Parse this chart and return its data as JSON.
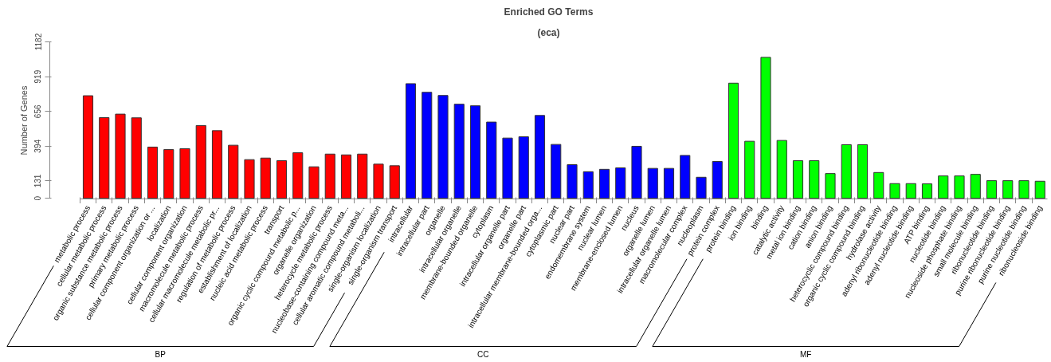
{
  "chart_data": {
    "type": "bar",
    "title": "Enriched GO Terms",
    "subtitle": "(eca)",
    "ylabel": "Number of Genes",
    "categories": [
      "metabolic process",
      "cellular metabolic process",
      "organic substance metabolic process",
      "primary metabolic process",
      "cellular component organization or ...",
      "localization",
      "cellular component organization",
      "macromolecule metabolic process",
      "cellular macromolecule metabolic pr...",
      "regulation of metabolic process",
      "establishment of localization",
      "nucleic acid metabolic process",
      "transport",
      "organic cyclic compound metabolic p...",
      "organelle organization",
      "heterocycle metabolic process",
      "nucleobase-containing compound meta...",
      "cellular aromatic compound metaboli...",
      "single-organism localization",
      "single-organism transport",
      "intracellular",
      "intracellular part",
      "organelle",
      "intracellular organelle",
      "membrane-bounded organelle",
      "cytoplasm",
      "intracellular organelle part",
      "organelle part",
      "intracellular membrane-bounded orga...",
      "cytoplasmic part",
      "nuclear part",
      "endomembrane system",
      "nuclear lumen",
      "membrane-enclosed lumen",
      "nucleus",
      "organelle lumen",
      "intracellular organelle lumen",
      "macromolecular complex",
      "nucleoplasm",
      "protein complex",
      "protein binding",
      "ion binding",
      "binding",
      "catalytic activity",
      "metal ion binding",
      "cation binding",
      "anion binding",
      "heterocyclic compound binding",
      "organic cyclic compound binding",
      "hydrolase activity",
      "adenyl ribonucleotide binding",
      "adenyl nucleotide binding",
      "ATP binding",
      "nucleotide binding",
      "nucleoside phosphate binding",
      "small molecule binding",
      "ribonucleotide binding",
      "purine ribonucleotide binding",
      "purine nucleotide binding",
      "ribonucleoside binding"
    ],
    "values": [
      775,
      610,
      636,
      608,
      387,
      368,
      375,
      550,
      511,
      401,
      292,
      304,
      284,
      344,
      238,
      334,
      328,
      334,
      258,
      246,
      866,
      801,
      777,
      711,
      699,
      576,
      455,
      465,
      626,
      407,
      254,
      201,
      219,
      230,
      393,
      226,
      226,
      324,
      159,
      278,
      870,
      431,
      1065,
      437,
      284,
      284,
      187,
      405,
      405,
      195,
      111,
      111,
      109,
      169,
      169,
      181,
      133,
      133,
      133,
      129
    ],
    "colors": [
      "#ff0000",
      "#ff0000",
      "#ff0000",
      "#ff0000",
      "#ff0000",
      "#ff0000",
      "#ff0000",
      "#ff0000",
      "#ff0000",
      "#ff0000",
      "#ff0000",
      "#ff0000",
      "#ff0000",
      "#ff0000",
      "#ff0000",
      "#ff0000",
      "#ff0000",
      "#ff0000",
      "#ff0000",
      "#ff0000",
      "#0000ff",
      "#0000ff",
      "#0000ff",
      "#0000ff",
      "#0000ff",
      "#0000ff",
      "#0000ff",
      "#0000ff",
      "#0000ff",
      "#0000ff",
      "#0000ff",
      "#0000ff",
      "#0000ff",
      "#0000ff",
      "#0000ff",
      "#0000ff",
      "#0000ff",
      "#0000ff",
      "#0000ff",
      "#0000ff",
      "#00ff00",
      "#00ff00",
      "#00ff00",
      "#00ff00",
      "#00ff00",
      "#00ff00",
      "#00ff00",
      "#00ff00",
      "#00ff00",
      "#00ff00",
      "#00ff00",
      "#00ff00",
      "#00ff00",
      "#00ff00",
      "#00ff00",
      "#00ff00",
      "#00ff00",
      "#00ff00",
      "#00ff00",
      "#00ff00"
    ],
    "ylim": [
      0,
      1182
    ],
    "yticks": [
      0,
      131,
      394,
      656,
      919,
      1182
    ],
    "annotations": [
      "BP",
      "CC",
      "MF"
    ]
  }
}
